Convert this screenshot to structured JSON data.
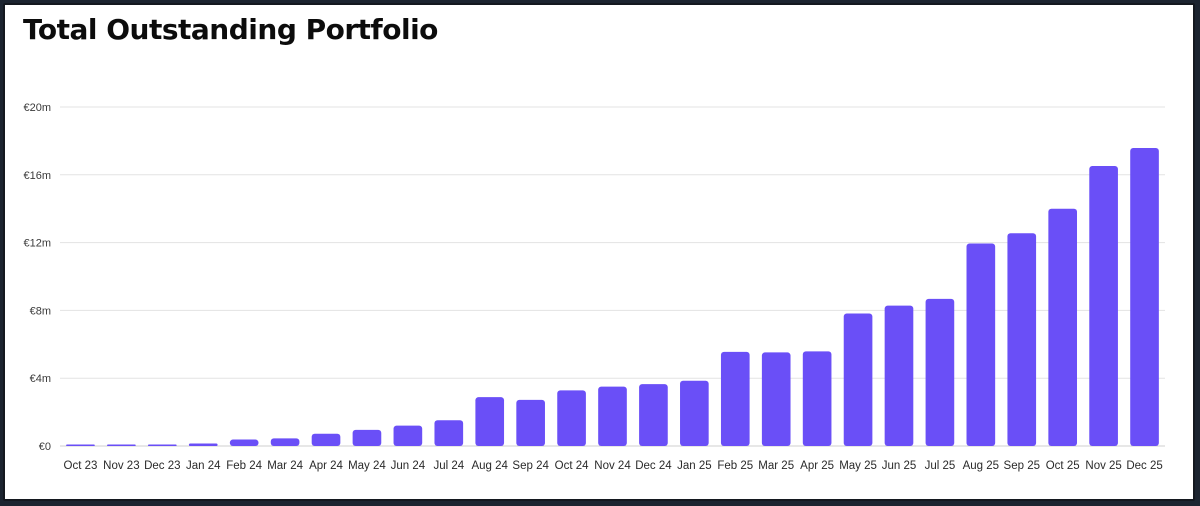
{
  "title": "Total Outstanding Portfolio",
  "colors": {
    "bar": "#6a4ff7",
    "grid": "#e3e3e3",
    "baseline": "#cfcfcf"
  },
  "chart_data": {
    "type": "bar",
    "title": "Total Outstanding Portfolio",
    "xlabel": "",
    "ylabel": "",
    "ylim": [
      0,
      20
    ],
    "unit": "€m",
    "grid": true,
    "y_ticks": [
      0,
      4,
      8,
      12,
      16,
      20
    ],
    "y_tick_labels": [
      "€0",
      "€4m",
      "€8m",
      "€12m",
      "€16m",
      "€20m"
    ],
    "categories": [
      "Oct 23",
      "Nov 23",
      "Dec 23",
      "Jan 24",
      "Feb 24",
      "Mar 24",
      "Apr 24",
      "May 24",
      "Jun 24",
      "Jul 24",
      "Aug 24",
      "Sep 24",
      "Oct 24",
      "Nov 24",
      "Dec 24",
      "Jan 25",
      "Feb 25",
      "Mar 25",
      "Apr 25",
      "May 25",
      "Jun 25",
      "Jul 25",
      "Aug 25",
      "Sep 25",
      "Oct 25",
      "Nov 25",
      "Dec 25"
    ],
    "values": [
      0.02,
      0.04,
      0.08,
      0.15,
      0.38,
      0.45,
      0.72,
      0.95,
      1.2,
      1.52,
      2.88,
      2.72,
      3.28,
      3.5,
      3.65,
      3.85,
      5.55,
      5.52,
      5.58,
      7.82,
      8.28,
      8.68,
      11.95,
      12.55,
      14.0,
      16.52,
      17.58
    ]
  }
}
